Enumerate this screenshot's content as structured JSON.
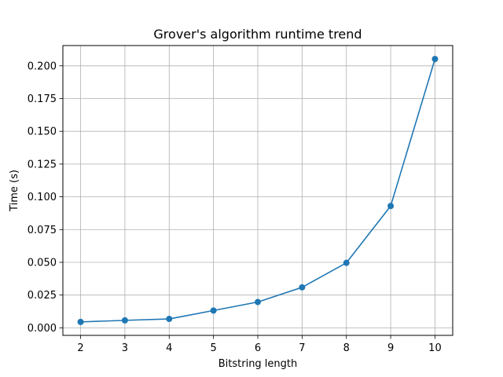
{
  "chart_data": {
    "type": "line",
    "title": "Grover's algorithm runtime trend",
    "xlabel": "Bitstring length",
    "ylabel": "Time (s)",
    "x": [
      2,
      3,
      4,
      5,
      6,
      7,
      8,
      9,
      10
    ],
    "series": [
      {
        "values": [
          0.0045,
          0.0057,
          0.0068,
          0.0132,
          0.0197,
          0.0309,
          0.0496,
          0.093,
          0.2052
        ],
        "color": "#1f77b4",
        "marker": "circle"
      }
    ],
    "xlim": [
      1.6,
      10.4
    ],
    "ylim": [
      -0.00577,
      0.21547
    ],
    "xticks": [
      "2",
      "3",
      "4",
      "5",
      "6",
      "7",
      "8",
      "9",
      "10"
    ],
    "yticks": [
      "0.000",
      "0.025",
      "0.050",
      "0.075",
      "0.100",
      "0.125",
      "0.150",
      "0.175",
      "0.200"
    ],
    "grid": true,
    "legend": false
  }
}
